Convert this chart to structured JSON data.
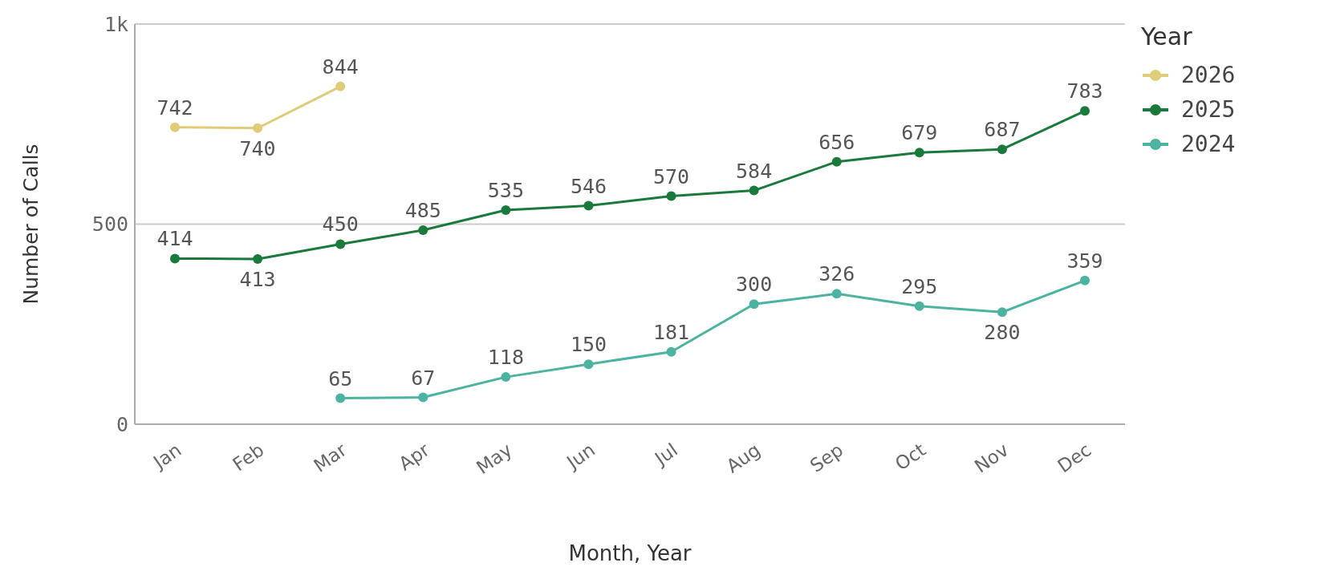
{
  "chart_data": {
    "type": "line",
    "xlabel": "Month, Year",
    "ylabel": "Number of Calls",
    "legend_title": "Year",
    "categories": [
      "Jan",
      "Feb",
      "Mar",
      "Apr",
      "May",
      "Jun",
      "Jul",
      "Aug",
      "Sep",
      "Oct",
      "Nov",
      "Dec"
    ],
    "series": [
      {
        "name": "2026",
        "color": "#e0cb78",
        "values": [
          742,
          740,
          844,
          null,
          null,
          null,
          null,
          null,
          null,
          null,
          null,
          null
        ]
      },
      {
        "name": "2025",
        "color": "#1a7a3c",
        "values": [
          414,
          413,
          450,
          485,
          535,
          546,
          570,
          584,
          656,
          679,
          687,
          783
        ]
      },
      {
        "name": "2024",
        "color": "#4bb3a0",
        "values": [
          null,
          null,
          65,
          67,
          118,
          150,
          181,
          300,
          326,
          295,
          280,
          359
        ]
      }
    ],
    "ylim": [
      0,
      1000
    ],
    "yticks": [
      0,
      500,
      {
        "value": 1000,
        "label": "1k"
      }
    ],
    "grid": "y",
    "legend": "right",
    "marker": "circle",
    "line_style": "solid",
    "data_labels": true
  }
}
